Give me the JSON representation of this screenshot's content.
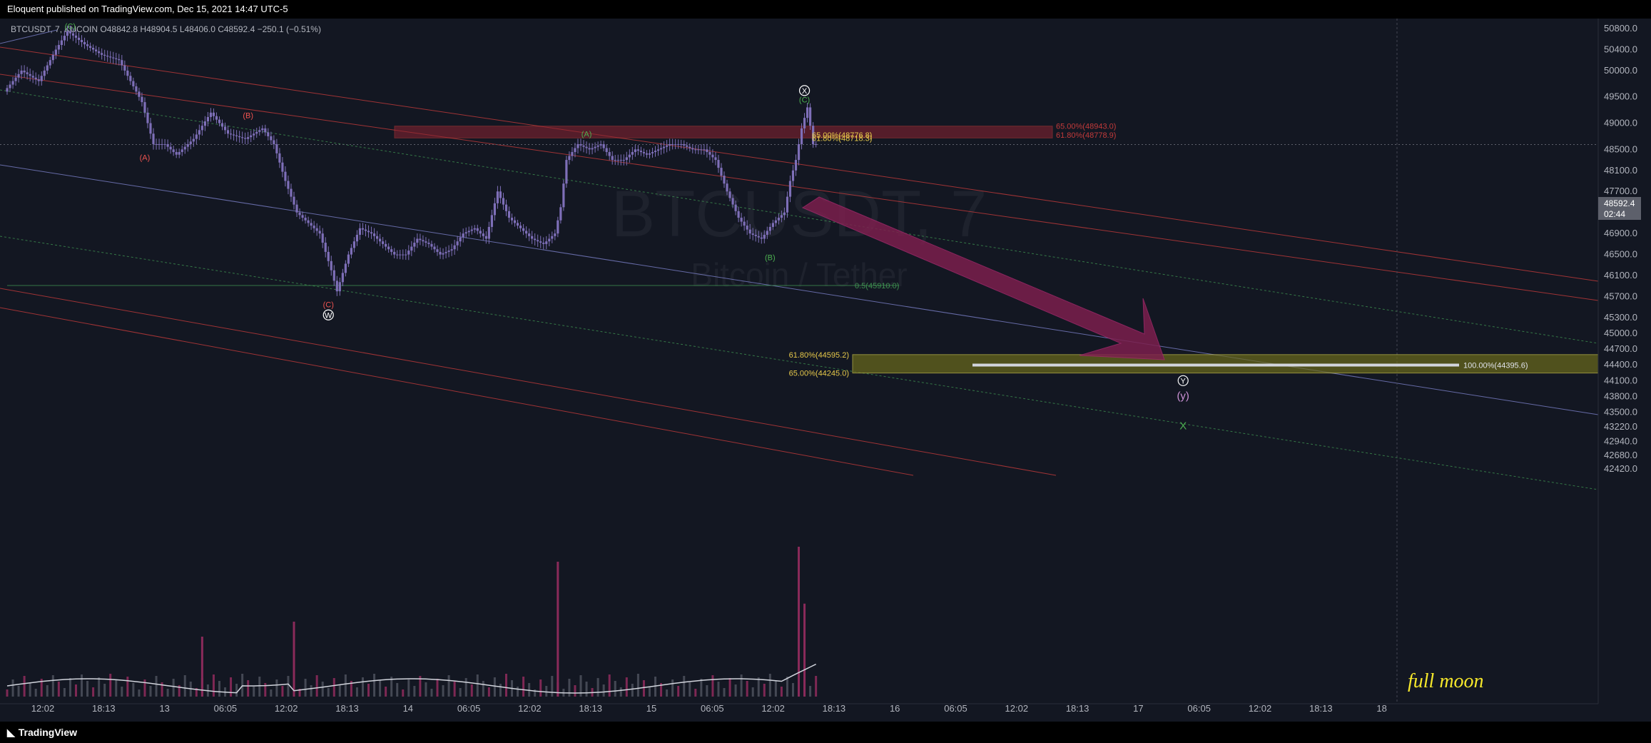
{
  "header": {
    "published": "Eloquent published on TradingView.com, Dec 15, 2021 14:47 UTC-5"
  },
  "footer": {
    "brand": "TradingView"
  },
  "legend": {
    "symbol": "BTCUSDT",
    "interval": "7",
    "exchange": "KUCOIN",
    "ohlc": "O48842.8 H48904.5 L48406.0 C48592.4 −250.1 (−0.51%)"
  },
  "watermark": {
    "symbol": "BTCUSDT, 7",
    "name": "Bitcoin / Tether"
  },
  "price_badge": {
    "price": "48592.4",
    "countdown": "02:44"
  },
  "colors": {
    "background": "#131722",
    "candles": "#7e6fb8",
    "wave_red": "#ef5350",
    "wave_green": "#4caf50",
    "fib_gold": "#e6c84a",
    "zone_red": "#8b2331",
    "zone_yellow": "#6b6a1c",
    "arrow": "#7b1f4d",
    "channel_red": "#c23a3a",
    "channel_green": "#3d8f4f",
    "channel_purple": "#7a7fc7",
    "annotation": "#f5e72b"
  },
  "chart_data": {
    "type": "candlestick",
    "symbol": "BTCUSDT",
    "timeframe": "7",
    "price_axis": {
      "ticks": [
        50800,
        50400,
        50000,
        49500,
        49000,
        48500,
        48100,
        47700,
        47300,
        46900,
        46500,
        46100,
        45700,
        45300,
        45000,
        44700,
        44400,
        44100,
        43800,
        43500,
        43220,
        42940,
        42680,
        42420
      ],
      "labels": [
        "50800.0",
        "50400.0",
        "50000.0",
        "49500.0",
        "49000.0",
        "48500.0",
        "48100.0",
        "47700.0",
        "47300.0",
        "46900.0",
        "46500.0",
        "46100.0",
        "45700.0",
        "45300.0",
        "45000.0",
        "44700.0",
        "44400.0",
        "44100.0",
        "43800.0",
        "43500.0",
        "43220.0",
        "42940.0",
        "42680.0",
        "42420.0"
      ]
    },
    "time_axis": {
      "labels": [
        "12:02",
        "18:13",
        "13",
        "06:05",
        "12:02",
        "18:13",
        "14",
        "06:05",
        "12:02",
        "18:13",
        "15",
        "06:05",
        "12:02",
        "18:13",
        "16",
        "06:05",
        "12:02",
        "18:13",
        "17",
        "06:05",
        "12:02",
        "18:13",
        "18"
      ]
    },
    "price_path": [
      [
        0,
        49600
      ],
      [
        3,
        50000
      ],
      [
        6,
        49800
      ],
      [
        9,
        50400
      ],
      [
        11,
        50750
      ],
      [
        14,
        50500
      ],
      [
        17,
        50300
      ],
      [
        20,
        50200
      ],
      [
        24,
        49400
      ],
      [
        26,
        48600
      ],
      [
        28,
        48600
      ],
      [
        30,
        48400
      ],
      [
        33,
        48700
      ],
      [
        36,
        49200
      ],
      [
        39,
        48800
      ],
      [
        42,
        48700
      ],
      [
        45,
        48900
      ],
      [
        47,
        48600
      ],
      [
        49,
        47900
      ],
      [
        51,
        47300
      ],
      [
        53,
        47100
      ],
      [
        55,
        46900
      ],
      [
        57,
        46200
      ],
      [
        58,
        45800
      ],
      [
        60,
        46500
      ],
      [
        62,
        47000
      ],
      [
        64,
        46900
      ],
      [
        66,
        46700
      ],
      [
        68,
        46500
      ],
      [
        70,
        46500
      ],
      [
        72,
        46800
      ],
      [
        74,
        46700
      ],
      [
        76,
        46500
      ],
      [
        78,
        46600
      ],
      [
        80,
        46900
      ],
      [
        82,
        47000
      ],
      [
        84,
        46800
      ],
      [
        86,
        47700
      ],
      [
        88,
        47200
      ],
      [
        90,
        47000
      ],
      [
        92,
        46800
      ],
      [
        94,
        46700
      ],
      [
        96,
        46900
      ],
      [
        97,
        47400
      ],
      [
        98,
        48300
      ],
      [
        100,
        48600
      ],
      [
        102,
        48500
      ],
      [
        104,
        48600
      ],
      [
        106,
        48300
      ],
      [
        108,
        48300
      ],
      [
        110,
        48500
      ],
      [
        112,
        48400
      ],
      [
        114,
        48500
      ],
      [
        116,
        48600
      ],
      [
        118,
        48600
      ],
      [
        120,
        48500
      ],
      [
        122,
        48500
      ],
      [
        124,
        48300
      ],
      [
        126,
        47700
      ],
      [
        128,
        47200
      ],
      [
        130,
        46900
      ],
      [
        132,
        46800
      ],
      [
        134,
        47100
      ],
      [
        136,
        47300
      ],
      [
        137,
        47900
      ],
      [
        138,
        48300
      ],
      [
        139,
        48900
      ],
      [
        140,
        49300
      ],
      [
        141,
        48600
      ]
    ],
    "volume_spikes": [
      {
        "x": 96,
        "v": 0.9
      },
      {
        "x": 138,
        "v": 1.0
      },
      {
        "x": 139,
        "v": 0.62
      },
      {
        "x": 50,
        "v": 0.5
      },
      {
        "x": 34,
        "v": 0.4
      }
    ],
    "wave_labels": [
      {
        "text": "(C)",
        "x": 11,
        "price": 50850,
        "color": "green"
      },
      {
        "text": "(B)",
        "x": 42,
        "price": 49150,
        "color": "red"
      },
      {
        "text": "(A)",
        "x": 24,
        "price": 48350,
        "color": "red"
      },
      {
        "text": "(C)",
        "x": 56,
        "price": 45550,
        "color": "red"
      },
      {
        "text": "W",
        "x": 56,
        "price": 45350,
        "color": "white",
        "circled": true
      },
      {
        "text": "(A)",
        "x": 101,
        "price": 48800,
        "color": "green"
      },
      {
        "text": "(B)",
        "x": 133,
        "price": 46450,
        "color": "green"
      },
      {
        "text": "(C)",
        "x": 139,
        "price": 49450,
        "color": "green"
      },
      {
        "text": "X",
        "x": 139,
        "price": 49620,
        "color": "white",
        "circled": true
      },
      {
        "text": "Y",
        "x": 205,
        "price": 44100,
        "color": "white",
        "circled": true
      },
      {
        "text": "(y)",
        "x": 205,
        "price": 43800,
        "color": "purple"
      },
      {
        "text": "X",
        "x": 205,
        "price": 43230,
        "color": "green"
      }
    ],
    "fib_levels": [
      {
        "label": "65.00%(48943.0)",
        "price": 48943.0,
        "color": "red"
      },
      {
        "label": "61.80%(48778.9)",
        "price": 48778.9,
        "color": "red"
      },
      {
        "label": "65.00%(48776.8)",
        "price": 48776.8,
        "color": "gold"
      },
      {
        "label": "61.80%(48718.3)",
        "price": 48718.3,
        "color": "gold"
      },
      {
        "label": "0.5(45910.0)",
        "price": 45910.0,
        "color": "green"
      },
      {
        "label": "61.80%(44595.2)",
        "price": 44595.2,
        "color": "gold"
      },
      {
        "label": "65.00%(44245.0)",
        "price": 44245.0,
        "color": "gold"
      },
      {
        "label": "100.00%(44395.6)",
        "price": 44395.6,
        "color": "white"
      }
    ],
    "zones": [
      {
        "name": "resistance",
        "from": 48718.3,
        "to": 48943.0,
        "color": "red"
      },
      {
        "name": "target",
        "from": 44245.0,
        "to": 44595.2,
        "color": "yellow"
      }
    ],
    "annotation": "full moon",
    "grid": false
  }
}
